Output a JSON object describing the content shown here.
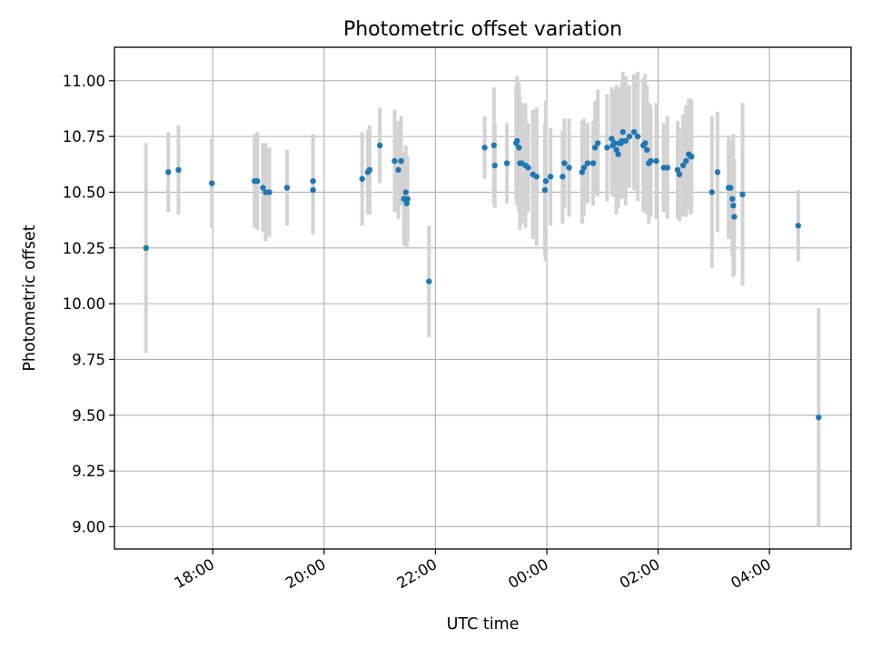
{
  "chart_data": {
    "type": "scatter",
    "title": "Photometric offset variation",
    "xlabel": "UTC time",
    "ylabel": "Photometric offset",
    "x_axis": "time",
    "xticks": [
      "18:00",
      "20:00",
      "22:00",
      "00:00",
      "02:00",
      "04:00"
    ],
    "xtick_hours": [
      18,
      20,
      22,
      24,
      26,
      28
    ],
    "xlim": [
      "16:14",
      "05:28"
    ],
    "yticks": [
      "9.00",
      "9.25",
      "9.50",
      "9.75",
      "10.00",
      "10.25",
      "10.50",
      "10.75",
      "11.00"
    ],
    "ylim": [
      8.9,
      11.15
    ],
    "grid": true,
    "colors": {
      "marker": "#1f77b4",
      "errorbar": "#d3d3d3",
      "grid": "#b0b0b0",
      "axes": "#000000"
    },
    "series": [
      {
        "x": [
          "16:48",
          "17:12",
          "17:23",
          "17:59",
          "18:45",
          "18:48",
          "18:54",
          "18:57",
          "19:01",
          "19:20",
          "19:48",
          "19:48",
          "20:41",
          "20:47",
          "20:49",
          "21:00",
          "21:16",
          "21:20",
          "21:23",
          "21:26",
          "21:27",
          "21:28",
          "21:29",
          "21:30",
          "21:53",
          "22:53",
          "23:03",
          "23:04",
          "23:17",
          "23:27",
          "23:28",
          "23:30",
          "23:31",
          "23:33",
          "23:37",
          "23:40",
          "23:45",
          "23:49",
          "23:58",
          "23:59",
          "00:04",
          "00:17",
          "00:19",
          "00:24",
          "00:38",
          "00:40",
          "00:44",
          "00:50",
          "00:52",
          "00:55",
          "01:05",
          "01:10",
          "01:11",
          "01:13",
          "01:15",
          "01:17",
          "01:18",
          "01:20",
          "01:21",
          "01:22",
          "01:25",
          "01:29",
          "01:34",
          "01:38",
          "01:44",
          "01:46",
          "01:48",
          "01:50",
          "01:52",
          "01:58",
          "02:06",
          "02:10",
          "02:21",
          "02:23",
          "02:27",
          "02:30",
          "02:33",
          "02:35",
          "02:36",
          "02:58",
          "03:04",
          "03:16",
          "03:18",
          "03:20",
          "03:21",
          "03:22",
          "03:31",
          "04:31",
          "04:53"
        ],
        "y": [
          10.25,
          10.59,
          10.6,
          10.54,
          10.55,
          10.55,
          10.52,
          10.5,
          10.5,
          10.52,
          10.51,
          10.55,
          10.56,
          10.59,
          10.6,
          10.71,
          10.64,
          10.6,
          10.64,
          10.47,
          10.47,
          10.5,
          10.45,
          10.47,
          10.1,
          10.7,
          10.71,
          10.62,
          10.63,
          10.72,
          10.73,
          10.7,
          10.63,
          10.63,
          10.62,
          10.61,
          10.58,
          10.57,
          10.51,
          10.55,
          10.57,
          10.57,
          10.63,
          10.61,
          10.59,
          10.61,
          10.63,
          10.63,
          10.7,
          10.72,
          10.7,
          10.74,
          10.71,
          10.72,
          10.69,
          10.67,
          10.72,
          10.72,
          10.73,
          10.77,
          10.73,
          10.75,
          10.77,
          10.75,
          10.71,
          10.72,
          10.69,
          10.63,
          10.64,
          10.64,
          10.61,
          10.61,
          10.6,
          10.58,
          10.62,
          10.64,
          10.67,
          10.66,
          10.66,
          10.5,
          10.59,
          10.52,
          10.52,
          10.47,
          10.44,
          10.39,
          10.49,
          10.35,
          9.49
        ],
        "err": [
          0.47,
          0.18,
          0.2,
          0.2,
          0.21,
          0.22,
          0.2,
          0.22,
          0.2,
          0.17,
          0.2,
          0.21,
          0.21,
          0.19,
          0.2,
          0.17,
          0.23,
          0.22,
          0.2,
          0.21,
          0.17,
          0.21,
          0.2,
          0.19,
          0.25,
          0.14,
          0.26,
          0.19,
          0.18,
          0.26,
          0.29,
          0.29,
          0.3,
          0.27,
          0.28,
          0.2,
          0.29,
          0.31,
          0.3,
          0.36,
          0.22,
          0.21,
          0.2,
          0.22,
          0.23,
          0.22,
          0.18,
          0.19,
          0.21,
          0.24,
          0.24,
          0.23,
          0.23,
          0.24,
          0.29,
          0.24,
          0.25,
          0.25,
          0.26,
          0.27,
          0.29,
          0.23,
          0.26,
          0.29,
          0.3,
          0.31,
          0.29,
          0.27,
          0.25,
          0.26,
          0.2,
          0.23,
          0.22,
          0.21,
          0.23,
          0.25,
          0.25,
          0.26,
          0.25,
          0.34,
          0.27,
          0.23,
          0.21,
          0.26,
          0.32,
          0.26,
          0.41,
          0.16,
          0.49
        ]
      }
    ]
  }
}
